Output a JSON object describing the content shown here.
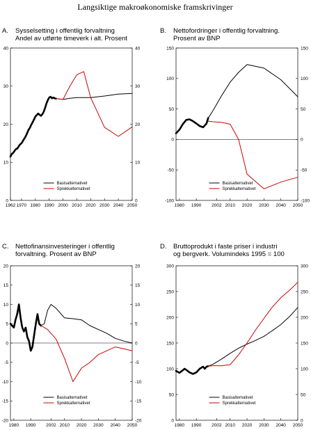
{
  "figure_title": "Langsiktige makroøkonomiske framskrivinger",
  "chart_data": [
    {
      "id": "A",
      "type": "line",
      "panel_label": "A.",
      "title_lines": [
        "Sysselsetting i offentlig forvaltning",
        "Andel av utførte timeverk i alt. Prosent"
      ],
      "xlim": [
        1962,
        2050
      ],
      "ylim": [
        0,
        40
      ],
      "x_ticks": [
        "1962",
        "1970",
        "1980",
        "1990",
        "2000",
        "2010",
        "2020",
        "2030",
        "2040",
        "2050"
      ],
      "x_tick_values": [
        1962,
        1970,
        1980,
        1990,
        2000,
        2010,
        2020,
        2030,
        2040,
        2050
      ],
      "y_ticks_left": [
        "0",
        "10",
        "20",
        "30",
        "40"
      ],
      "y_tick_values_left": [
        0,
        10,
        20,
        30,
        40
      ],
      "y_ticks_right": [
        "0",
        "10",
        "20",
        "30",
        "40"
      ],
      "y_tick_values_right": [
        0,
        10,
        20,
        30,
        40
      ],
      "legend_position": "lower-center",
      "series": [
        {
          "role": "history",
          "color": "#000000",
          "width": 2.6,
          "x": [
            1962,
            1963,
            1964,
            1965,
            1966,
            1967,
            1968,
            1969,
            1970,
            1971,
            1972,
            1973,
            1974,
            1975,
            1976,
            1977,
            1978,
            1979,
            1980,
            1981,
            1982,
            1983,
            1984,
            1985,
            1986,
            1987,
            1988,
            1989,
            1990,
            1991,
            1992,
            1993,
            1994,
            1995
          ],
          "y": [
            11.5,
            12.2,
            12.5,
            13,
            13.5,
            13.6,
            14.2,
            14.7,
            15,
            15.6,
            16.2,
            16.8,
            17.6,
            18.5,
            19,
            19.8,
            20.5,
            21.2,
            22,
            22.4,
            22.8,
            22.5,
            22.2,
            22.6,
            23.2,
            24.2,
            25.4,
            26.3,
            27,
            27.2,
            26.8,
            27,
            26.8,
            26.7
          ]
        },
        {
          "name": "Basisalternativet",
          "color": "#000000",
          "width": 1,
          "x": [
            1995,
            2000,
            2005,
            2010,
            2015,
            2020,
            2030,
            2040,
            2050
          ],
          "y": [
            26.7,
            26.5,
            26.8,
            27,
            27,
            27,
            27.4,
            27.9,
            28.1
          ]
        },
        {
          "name": "Sprekkalternativet",
          "color": "#cc0000",
          "width": 1,
          "x": [
            1995,
            2000,
            2005,
            2010,
            2015,
            2020,
            2030,
            2040,
            2050
          ],
          "y": [
            26.7,
            26.5,
            30,
            33,
            33.8,
            27,
            19.2,
            16.8,
            19.3
          ]
        }
      ]
    },
    {
      "id": "B",
      "type": "line",
      "panel_label": "B.",
      "title_lines": [
        "Nettofordringer i offentlig forvaltning.",
        "Prosent av BNP"
      ],
      "xlim": [
        1978,
        2050
      ],
      "ylim": [
        -100,
        150
      ],
      "x_ticks": [
        "1980",
        "1990",
        "2002",
        "2010",
        "2020",
        "2030",
        "2040",
        "2050"
      ],
      "x_tick_values": [
        1980,
        1990,
        2002,
        2010,
        2020,
        2030,
        2040,
        2050
      ],
      "y_ticks_left": [
        "-100",
        "-50",
        "0",
        "50",
        "100",
        "150"
      ],
      "y_tick_values_left": [
        -100,
        -50,
        0,
        50,
        100,
        150
      ],
      "y_ticks_right": [
        "-100",
        "-50",
        "0",
        "50",
        "100",
        "150"
      ],
      "y_tick_values_right": [
        -100,
        -50,
        0,
        50,
        100,
        150
      ],
      "legend_position": "lower-center",
      "series": [
        {
          "role": "history",
          "color": "#000000",
          "width": 2.6,
          "x": [
            1978,
            1980,
            1982,
            1984,
            1986,
            1988,
            1990,
            1992,
            1994,
            1996,
            1997
          ],
          "y": [
            10,
            16,
            25,
            32,
            33,
            30,
            26,
            22,
            20,
            26,
            35
          ]
        },
        {
          "name": "Basisalternativet",
          "color": "#000000",
          "width": 1,
          "x": [
            1997,
            2000,
            2005,
            2010,
            2015,
            2020,
            2030,
            2040,
            2050
          ],
          "y": [
            35,
            48,
            72,
            94,
            110,
            123,
            117,
            98,
            70
          ]
        },
        {
          "name": "Sprekkalternativet",
          "color": "#cc0000",
          "width": 1,
          "x": [
            1997,
            2000,
            2005,
            2010,
            2015,
            2020,
            2030,
            2040,
            2050
          ],
          "y": [
            30,
            29,
            28,
            25,
            0,
            -57,
            -81,
            -70,
            -62
          ]
        }
      ]
    },
    {
      "id": "C",
      "type": "line",
      "panel_label": "C.",
      "title_lines": [
        "Nettofinansinvesteringer i offentlig",
        "forvaltning. Prosent av BNP"
      ],
      "xlim": [
        1978,
        2050
      ],
      "ylim": [
        -20,
        20
      ],
      "x_ticks": [
        "1980",
        "1990",
        "2002",
        "2010",
        "2020",
        "2030",
        "2040",
        "2050"
      ],
      "x_tick_values": [
        1980,
        1990,
        2002,
        2010,
        2020,
        2030,
        2040,
        2050
      ],
      "y_ticks_left": [
        "-20",
        "-15",
        "-10",
        "-5",
        "0",
        "5",
        "10",
        "15",
        "20"
      ],
      "y_tick_values_left": [
        -20,
        -15,
        -10,
        -5,
        0,
        5,
        10,
        15,
        20
      ],
      "y_ticks_right": [
        "-20",
        "-15",
        "-10",
        "-5",
        "0",
        "5",
        "10",
        "15",
        "20"
      ],
      "y_tick_values_right": [
        -20,
        -15,
        -10,
        -5,
        0,
        5,
        10,
        15,
        20
      ],
      "legend_position": "lower-center",
      "series": [
        {
          "role": "history",
          "color": "#000000",
          "width": 2.6,
          "x": [
            1978,
            1979,
            1980,
            1981,
            1982,
            1983,
            1984,
            1985,
            1986,
            1987,
            1988,
            1989,
            1990,
            1991,
            1992,
            1993,
            1994,
            1995,
            1996
          ],
          "y": [
            5,
            4.5,
            4,
            6,
            7.5,
            10,
            6.5,
            4,
            3,
            4,
            1.5,
            0.5,
            -2,
            -1,
            2,
            5,
            7.5,
            5,
            4.5
          ]
        },
        {
          "name": "Basisalternativet",
          "color": "#000000",
          "width": 1,
          "x": [
            1996,
            1998,
            2000,
            2002,
            2005,
            2010,
            2015,
            2020,
            2025,
            2030,
            2035,
            2040,
            2045,
            2050
          ],
          "y": [
            4.5,
            5,
            8.5,
            10,
            9,
            6.5,
            6.3,
            6,
            4.5,
            3.5,
            2.5,
            1.2,
            0.5,
            0
          ]
        },
        {
          "name": "Sprekkalternativet",
          "color": "#cc0000",
          "width": 1,
          "x": [
            1996,
            2000,
            2005,
            2010,
            2015,
            2020,
            2025,
            2030,
            2035,
            2040,
            2045,
            2050
          ],
          "y": [
            4.5,
            3.5,
            1,
            -4,
            -10,
            -6.5,
            -5,
            -3,
            -2,
            -1,
            -1.5,
            -2
          ]
        }
      ]
    },
    {
      "id": "D",
      "type": "line",
      "panel_label": "D.",
      "title_lines": [
        "Bruttoprodukt i faste priser i industri",
        "og bergverk. Volumindeks 1995 = 100"
      ],
      "xlim": [
        1978,
        2050
      ],
      "ylim": [
        0,
        300
      ],
      "x_ticks": [
        "1980",
        "1990",
        "2002",
        "2010",
        "2020",
        "2030",
        "2040",
        "2050"
      ],
      "x_tick_values": [
        1980,
        1990,
        2002,
        2010,
        2020,
        2030,
        2040,
        2050
      ],
      "y_ticks_left": [
        "0",
        "50",
        "100",
        "150",
        "200",
        "250",
        "300"
      ],
      "y_tick_values_left": [
        0,
        50,
        100,
        150,
        200,
        250,
        300
      ],
      "y_ticks_right": [
        "0",
        "50",
        "100",
        "150",
        "200",
        "250",
        "300"
      ],
      "y_tick_values_right": [
        0,
        50,
        100,
        150,
        200,
        250,
        300
      ],
      "legend_position": "lower-center",
      "series": [
        {
          "role": "history",
          "color": "#000000",
          "width": 2.6,
          "x": [
            1978,
            1980,
            1982,
            1983,
            1984,
            1986,
            1988,
            1990,
            1992,
            1994,
            1995,
            1996,
            1997
          ],
          "y": [
            96,
            92,
            97,
            100,
            98,
            93,
            90,
            93,
            100,
            104,
            100,
            104,
            105
          ]
        },
        {
          "name": "Basisalternativet",
          "color": "#000000",
          "width": 1,
          "x": [
            1997,
            2000,
            2005,
            2010,
            2015,
            2020,
            2025,
            2030,
            2035,
            2040,
            2045,
            2050
          ],
          "y": [
            105,
            109,
            119,
            130,
            140,
            148,
            155,
            163,
            174,
            186,
            201,
            219
          ]
        },
        {
          "name": "Sprekkalternativet",
          "color": "#cc0000",
          "width": 1,
          "x": [
            1997,
            2000,
            2005,
            2010,
            2015,
            2020,
            2025,
            2030,
            2035,
            2040,
            2045,
            2050
          ],
          "y": [
            105,
            106,
            106,
            108,
            127,
            150,
            175,
            198,
            220,
            238,
            252,
            268
          ]
        }
      ]
    }
  ]
}
